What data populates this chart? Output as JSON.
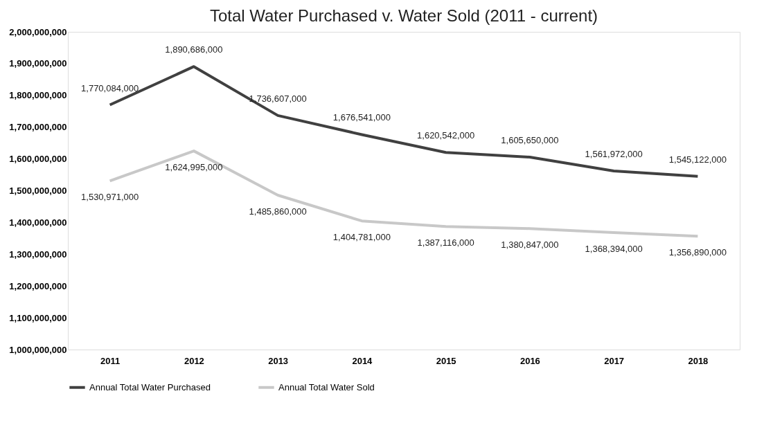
{
  "chart_data": {
    "type": "line",
    "title": "Total Water Purchased v. Water Sold (2011 - current)",
    "categories": [
      "2011",
      "2012",
      "2013",
      "2014",
      "2015",
      "2016",
      "2017",
      "2018"
    ],
    "series": [
      {
        "name": "Annual Total Water Purchased",
        "color": "#404040",
        "values": [
          1770084000,
          1890686000,
          1736607000,
          1676541000,
          1620542000,
          1605650000,
          1561972000,
          1545122000
        ],
        "value_labels": [
          "1,770,084,000",
          "1,890,686,000",
          "1,736,607,000",
          "1,676,541,000",
          "1,620,542,000",
          "1,605,650,000",
          "1,561,972,000",
          "1,545,122,000"
        ]
      },
      {
        "name": "Annual Total Water Sold",
        "color": "#c8c8c8",
        "values": [
          1530971000,
          1624995000,
          1485860000,
          1404781000,
          1387116000,
          1380847000,
          1368394000,
          1356890000
        ],
        "value_labels": [
          "1,530,971,000",
          "1,624,995,000",
          "1,485,860,000",
          "1,404,781,000",
          "1,387,116,000",
          "1,380,847,000",
          "1,368,394,000",
          "1,356,890,000"
        ]
      }
    ],
    "ylim": [
      1000000000,
      2000000000
    ],
    "yticks": [
      {
        "value": 1000000000,
        "label": "1,000,000,000"
      },
      {
        "value": 1100000000,
        "label": "1,100,000,000"
      },
      {
        "value": 1200000000,
        "label": "1,200,000,000"
      },
      {
        "value": 1300000000,
        "label": "1,300,000,000"
      },
      {
        "value": 1400000000,
        "label": "1,400,000,000"
      },
      {
        "value": 1500000000,
        "label": "1,500,000,000"
      },
      {
        "value": 1600000000,
        "label": "1,600,000,000"
      },
      {
        "value": 1700000000,
        "label": "1,700,000,000"
      },
      {
        "value": 1800000000,
        "label": "1,800,000,000"
      },
      {
        "value": 1900000000,
        "label": "1,900,000,000"
      },
      {
        "value": 2000000000,
        "label": "2,000,000,000"
      }
    ],
    "grid": false,
    "legend": "bottom",
    "marker": "none",
    "line_style": "solid"
  }
}
